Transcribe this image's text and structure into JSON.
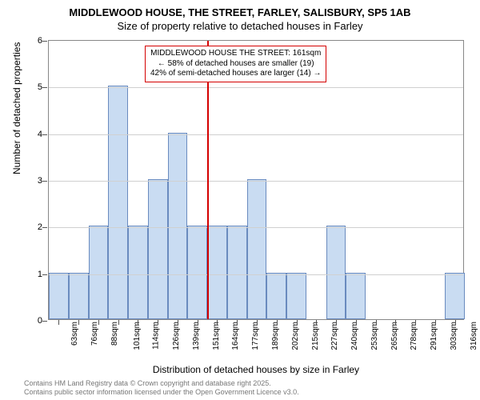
{
  "title_main": "MIDDLEWOOD HOUSE, THE STREET, FARLEY, SALISBURY, SP5 1AB",
  "title_sub": "Size of property relative to detached houses in Farley",
  "y_axis_title": "Number of detached properties",
  "x_axis_title": "Distribution of detached houses by size in Farley",
  "chart": {
    "type": "histogram",
    "ylim": [
      0,
      6
    ],
    "ytick_step": 1,
    "categories": [
      "63sqm",
      "76sqm",
      "88sqm",
      "101sqm",
      "114sqm",
      "126sqm",
      "139sqm",
      "151sqm",
      "164sqm",
      "177sqm",
      "189sqm",
      "202sqm",
      "215sqm",
      "227sqm",
      "240sqm",
      "253sqm",
      "265sqm",
      "278sqm",
      "291sqm",
      "303sqm",
      "316sqm"
    ],
    "values": [
      1,
      1,
      2,
      5,
      2,
      3,
      4,
      2,
      2,
      2,
      3,
      1,
      1,
      0,
      2,
      1,
      0,
      0,
      0,
      0,
      1
    ],
    "bar_fill": "#c9dcf2",
    "bar_border": "#6a8bbf",
    "grid_color": "#d0d0d0",
    "background_color": "#ffffff",
    "marker_index": 8,
    "marker_color": "#d40000"
  },
  "callout": {
    "line1": "MIDDLEWOOD HOUSE THE STREET: 161sqm",
    "line2": "← 58% of detached houses are smaller (19)",
    "line3": "42% of semi-detached houses are larger (14) →"
  },
  "footer": {
    "line1": "Contains HM Land Registry data © Crown copyright and database right 2025.",
    "line2": "Contains public sector information licensed under the Open Government Licence v3.0."
  }
}
